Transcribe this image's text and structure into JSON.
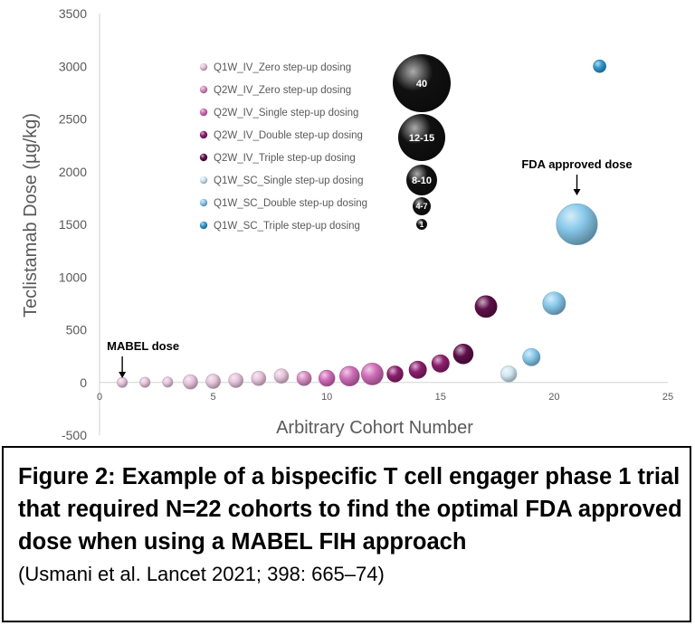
{
  "chart_data": {
    "type": "bubble",
    "ylabel": "Teclistamab Dose (µg/kg)",
    "xlabel": "Arbitrary Cohort Number",
    "xlim": [
      0,
      25
    ],
    "ylim": [
      -500,
      3500
    ],
    "x_ticks": [
      "0",
      "5",
      "10",
      "15",
      "20",
      "25"
    ],
    "y_ticks": [
      "-500",
      "0",
      "500",
      "1000",
      "1500",
      "2000",
      "2500",
      "3000",
      "3500"
    ],
    "grid": false,
    "legend_position": "top-center",
    "series": [
      {
        "name": "Q1W_IV_Zero step-up dosing",
        "color": "#e6c3db",
        "points": [
          {
            "x": 1,
            "y": 0.3,
            "n": 1
          },
          {
            "x": 2,
            "y": 1,
            "n": 1
          },
          {
            "x": 3,
            "y": 3,
            "n": 1
          },
          {
            "x": 4,
            "y": 5,
            "n": 3
          },
          {
            "x": 5,
            "y": 10,
            "n": 3
          },
          {
            "x": 6,
            "y": 19,
            "n": 3
          },
          {
            "x": 7,
            "y": 38,
            "n": 3
          },
          {
            "x": 8,
            "y": 60,
            "n": 3
          }
        ]
      },
      {
        "name": "Q2W_IV_Zero step-up dosing",
        "color": "#d78cc2",
        "points": [
          {
            "x": 9,
            "y": 38,
            "n": 3
          }
        ]
      },
      {
        "name": "Q2W_IV_Single step-up dosing",
        "color": "#cf6cb8",
        "points": [
          {
            "x": 10,
            "y": 40,
            "n": 4
          },
          {
            "x": 11,
            "y": 60,
            "n": 7
          },
          {
            "x": 12,
            "y": 80,
            "n": 9
          }
        ]
      },
      {
        "name": "Q2W_IV_Double step-up dosing",
        "color": "#8c1f6e",
        "points": [
          {
            "x": 13,
            "y": 80,
            "n": 4
          },
          {
            "x": 14,
            "y": 120,
            "n": 5
          },
          {
            "x": 15,
            "y": 180,
            "n": 5
          }
        ]
      },
      {
        "name": "Q2W_IV_Triple step-up dosing",
        "color": "#5e0f4a",
        "points": [
          {
            "x": 16,
            "y": 270,
            "n": 7
          },
          {
            "x": 17,
            "y": 720,
            "n": 9
          }
        ]
      },
      {
        "name": "Q1W_SC_Single step-up dosing",
        "color": "#cfe6f2",
        "points": [
          {
            "x": 18,
            "y": 80,
            "n": 4
          }
        ]
      },
      {
        "name": "Q1W_SC_Double step-up dosing",
        "color": "#88c8ea",
        "points": [
          {
            "x": 19,
            "y": 240,
            "n": 5
          },
          {
            "x": 20,
            "y": 750,
            "n": 10
          },
          {
            "x": 21,
            "y": 1500,
            "n": 40
          }
        ]
      },
      {
        "name": "Q1W_SC_Triple step-up dosing",
        "color": "#2f97cf",
        "points": [
          {
            "x": 22,
            "y": 3000,
            "n": 2
          }
        ]
      }
    ],
    "size_key": {
      "color": "#111111",
      "items": [
        {
          "label": "40",
          "n": 40
        },
        {
          "label": "12-15",
          "n": 14
        },
        {
          "label": "8-10",
          "n": 9
        },
        {
          "label": "4-7",
          "n": 5
        },
        {
          "label": "1",
          "n": 1
        }
      ]
    },
    "annotations": [
      {
        "text": "MABEL dose",
        "x": 1,
        "y": 0
      },
      {
        "text": "FDA approved dose",
        "x": 21,
        "y": 1500
      }
    ]
  },
  "caption": {
    "title": "Figure 2: Example of a bispecific T cell engager phase 1 trial that required N=22 cohorts to find the optimal FDA approved dose when using a MABEL FIH approach",
    "citation": "(Usmani et al. Lancet 2021; 398: 665–74)"
  }
}
